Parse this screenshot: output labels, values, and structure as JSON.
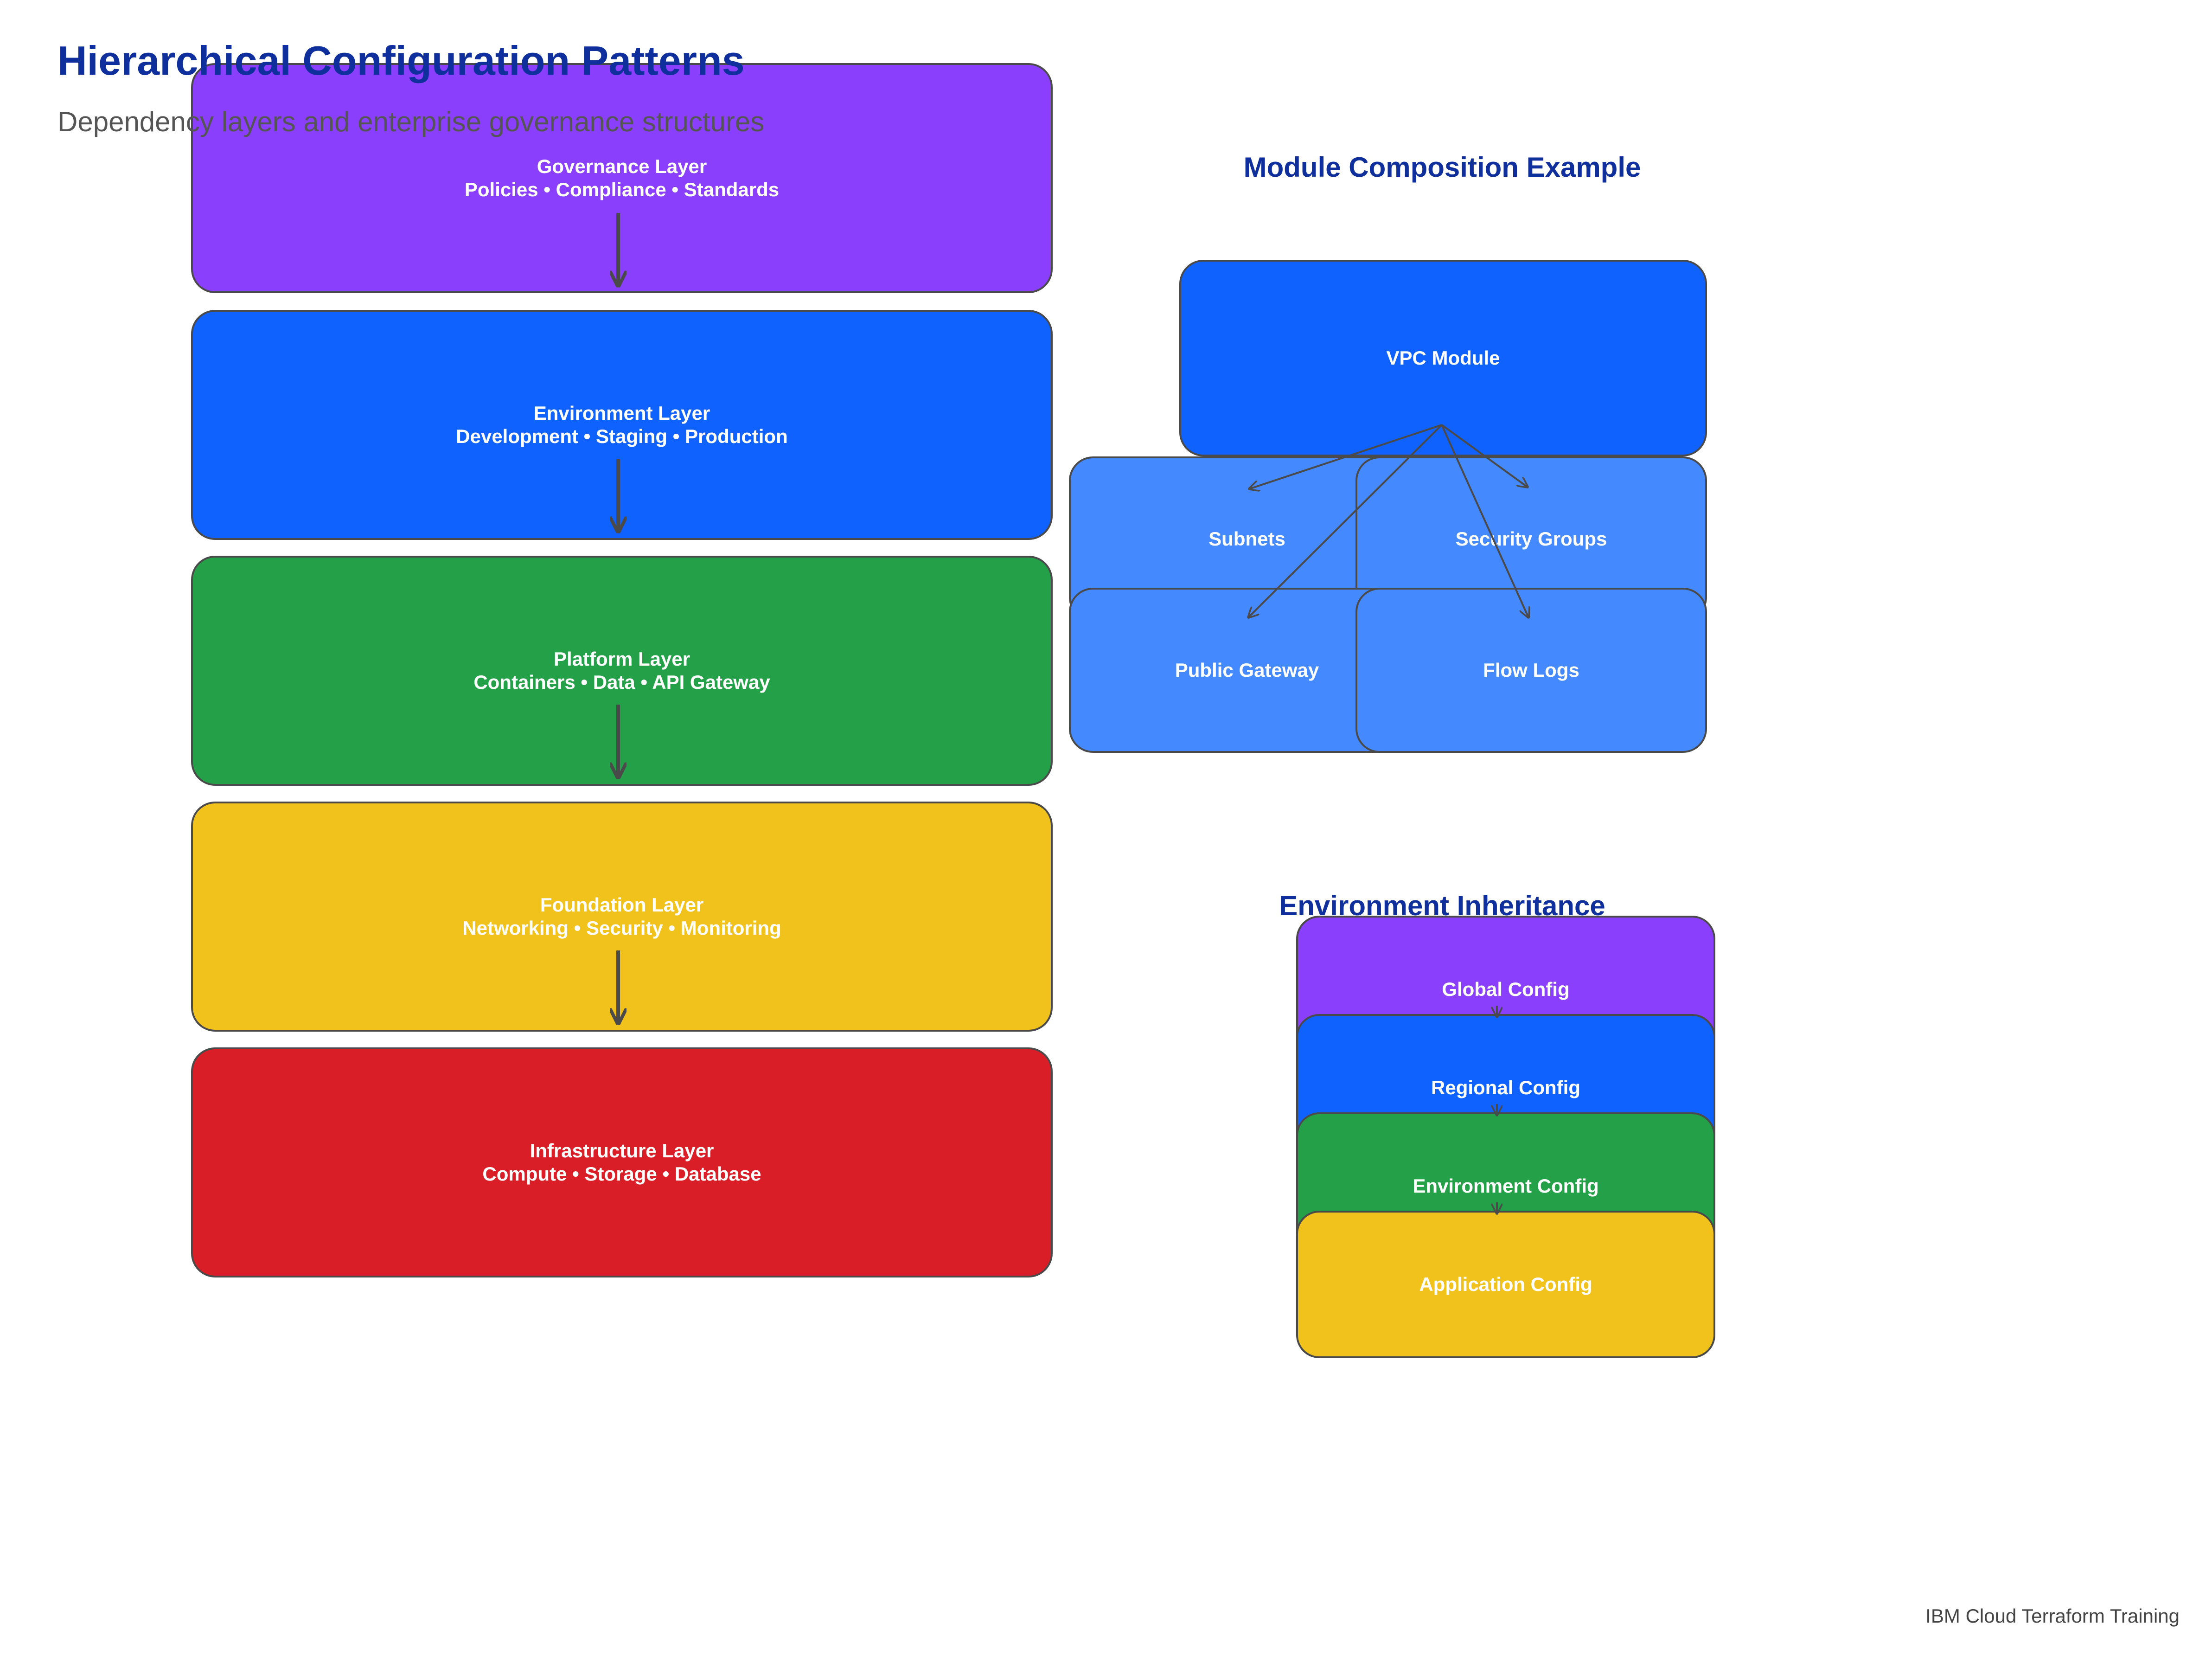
{
  "title": "Hierarchical Configuration Patterns",
  "subtitle": "Dependency layers and enterprise governance structures",
  "layers": [
    {
      "name": "Governance Layer",
      "detail": "Policies • Compliance • Standards",
      "color": "#8a3ffc"
    },
    {
      "name": "Environment Layer",
      "detail": "Development • Staging • Production",
      "color": "#0f62fe"
    },
    {
      "name": "Platform Layer",
      "detail": "Containers • Data • API Gateway",
      "color": "#24a148"
    },
    {
      "name": "Foundation Layer",
      "detail": "Networking • Security • Monitoring",
      "color": "#f1c21b"
    },
    {
      "name": "Infrastructure Layer",
      "detail": "Compute • Storage • Database",
      "color": "#da1e28"
    }
  ],
  "module_composition": {
    "heading": "Module Composition Example",
    "root": {
      "label": "VPC Module",
      "color": "#0f62fe"
    },
    "children": [
      {
        "label": "Subnets",
        "color": "#4589ff"
      },
      {
        "label": "Security Groups",
        "color": "#4589ff"
      },
      {
        "label": "Public Gateway",
        "color": "#4589ff"
      },
      {
        "label": "Flow Logs",
        "color": "#4589ff"
      }
    ]
  },
  "environment_inheritance": {
    "heading": "Environment Inheritance",
    "levels": [
      {
        "label": "Global Config",
        "color": "#8a3ffc"
      },
      {
        "label": "Regional Config",
        "color": "#0f62fe"
      },
      {
        "label": "Environment Config",
        "color": "#24a148"
      },
      {
        "label": "Application Config",
        "color": "#f1c21b"
      }
    ]
  },
  "footer": "IBM Cloud Terraform Training",
  "colors": {
    "heading": "#0f2f9c",
    "connector": "#4a4a4a"
  }
}
